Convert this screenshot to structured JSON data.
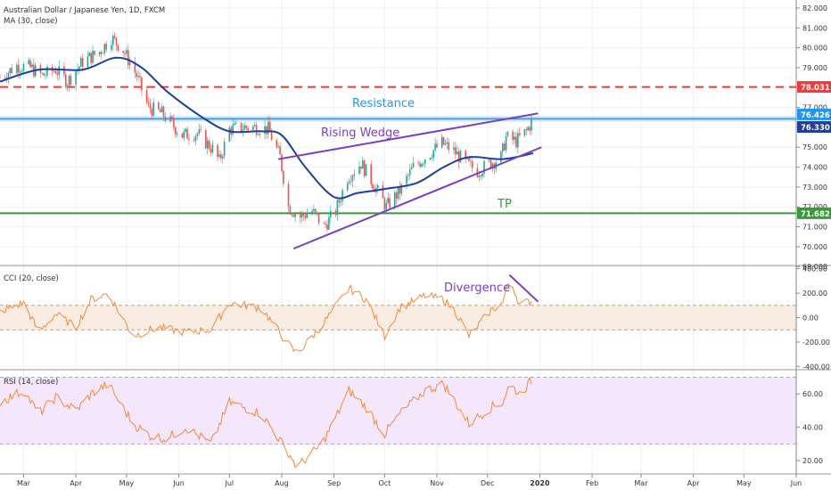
{
  "header": {
    "title": "Australian Dollar / Japanese Yen, 1D, FXCM",
    "ma_label": "MA (30, close)"
  },
  "price_axis": {
    "ticks": [
      "82.000",
      "81.000",
      "80.000",
      "79.000",
      "78.000",
      "77.000",
      "76.000",
      "75.000",
      "74.000",
      "73.000",
      "72.000",
      "71.000",
      "70.000",
      "69.000"
    ],
    "badges": [
      {
        "label": "78.031",
        "value": 78.031,
        "color": "#ef3b3b"
      },
      {
        "label": "76.426",
        "value": 76.426,
        "color": "#2196f3"
      },
      {
        "label": "76.330",
        "value": 76.33,
        "color": "#1f3f99"
      },
      {
        "label": "71.682",
        "value": 71.682,
        "color": "#3a9a3a"
      }
    ]
  },
  "annotations": {
    "resistance": "Resistance",
    "rising_wedge": "Rising Wedge",
    "tp": "TP",
    "divergence": "Divergence"
  },
  "cci_panel": {
    "label": "CCI (20, close)",
    "ticks": [
      "400.00",
      "200.00",
      "0.00",
      "-200.00",
      "-400.00"
    ]
  },
  "rsi_panel": {
    "label": "RSI (14, close)",
    "ticks": [
      "60.00",
      "40.00",
      "20.00"
    ]
  },
  "time_axis": {
    "ticks": [
      "Mar",
      "Apr",
      "May",
      "Jun",
      "Jul",
      "Aug",
      "Sep",
      "Oct",
      "Nov",
      "Dec",
      "2020",
      "Feb",
      "Mar",
      "Apr",
      "May",
      "Jun"
    ]
  },
  "colors": {
    "up": "#26a69a",
    "down": "#ef5350",
    "ma": "#1f3f99",
    "indicator": "#f28a3c",
    "wedge": "#7b3fbf",
    "resistance": "#2196f3",
    "tp": "#3a9a3a",
    "level": "#ef3b3b"
  },
  "chart_data": [
    {
      "type": "candlestick",
      "title": "Australian Dollar / Japanese Yen, 1D, FXCM",
      "ylim": [
        69,
        82
      ],
      "x_range": [
        "2019-02-15",
        "2020-06-01"
      ],
      "price_path": [
        [
          "2019-02-15",
          78.5
        ],
        [
          "2019-02-25",
          79.1
        ],
        [
          "2019-03-05",
          79.0
        ],
        [
          "2019-03-12",
          78.6
        ],
        [
          "2019-03-20",
          78.9
        ],
        [
          "2019-03-27",
          78.3
        ],
        [
          "2019-04-05",
          79.3
        ],
        [
          "2019-04-15",
          79.8
        ],
        [
          "2019-04-22",
          80.5
        ],
        [
          "2019-04-29",
          79.9
        ],
        [
          "2019-05-07",
          78.6
        ],
        [
          "2019-05-14",
          77.0
        ],
        [
          "2019-05-22",
          76.7
        ],
        [
          "2019-06-03",
          75.6
        ],
        [
          "2019-06-12",
          75.7
        ],
        [
          "2019-06-21",
          74.9
        ],
        [
          "2019-06-25",
          74.3
        ],
        [
          "2019-07-01",
          75.9
        ],
        [
          "2019-07-10",
          76.0
        ],
        [
          "2019-07-18",
          76.0
        ],
        [
          "2019-07-24",
          75.9
        ],
        [
          "2019-07-31",
          74.5
        ],
        [
          "2019-08-05",
          72.0
        ],
        [
          "2019-08-12",
          71.5
        ],
        [
          "2019-08-19",
          71.8
        ],
        [
          "2019-08-26",
          71.0
        ],
        [
          "2019-09-02",
          71.8
        ],
        [
          "2019-09-09",
          73.5
        ],
        [
          "2019-09-17",
          74.2
        ],
        [
          "2019-09-24",
          73.2
        ],
        [
          "2019-10-02",
          72.0
        ],
        [
          "2019-10-10",
          72.8
        ],
        [
          "2019-10-18",
          74.0
        ],
        [
          "2019-10-25",
          74.5
        ],
        [
          "2019-11-04",
          75.2
        ],
        [
          "2019-11-11",
          74.8
        ],
        [
          "2019-11-18",
          74.2
        ],
        [
          "2019-11-25",
          73.8
        ],
        [
          "2019-12-03",
          74.2
        ],
        [
          "2019-12-09",
          74.5
        ],
        [
          "2019-12-12",
          75.5
        ],
        [
          "2019-12-18",
          75.3
        ],
        [
          "2019-12-24",
          75.8
        ],
        [
          "2019-12-28",
          76.4
        ]
      ],
      "ma_30": [
        [
          "2019-02-15",
          78.3
        ],
        [
          "2019-03-10",
          78.9
        ],
        [
          "2019-04-05",
          78.9
        ],
        [
          "2019-04-25",
          79.5
        ],
        [
          "2019-05-10",
          79.0
        ],
        [
          "2019-05-25",
          77.8
        ],
        [
          "2019-06-15",
          76.5
        ],
        [
          "2019-07-01",
          75.8
        ],
        [
          "2019-07-20",
          75.8
        ],
        [
          "2019-08-01",
          75.6
        ],
        [
          "2019-08-15",
          74.0
        ],
        [
          "2019-09-01",
          72.5
        ],
        [
          "2019-09-15",
          72.7
        ],
        [
          "2019-10-01",
          72.9
        ],
        [
          "2019-10-20",
          73.2
        ],
        [
          "2019-11-05",
          74.0
        ],
        [
          "2019-11-20",
          74.5
        ],
        [
          "2019-12-10",
          74.4
        ],
        [
          "2019-12-28",
          74.7
        ]
      ],
      "levels": [
        {
          "name": "level-78",
          "value": 78.031
        },
        {
          "name": "Resistance",
          "value": 76.426
        },
        {
          "name": "TP",
          "value": 71.682
        }
      ],
      "wedge_lines": [
        {
          "from": [
            "2019-07-30",
            74.4
          ],
          "to": [
            "2019-12-31",
            76.7
          ]
        },
        {
          "from": [
            "2019-08-08",
            69.9
          ],
          "to": [
            "2020-01-02",
            75.0
          ]
        }
      ]
    },
    {
      "type": "line",
      "title": "CCI (20, close)",
      "ylim": [
        -420,
        420
      ],
      "band": [
        -100,
        100
      ],
      "path": [
        [
          "2019-02-15",
          50
        ],
        [
          "2019-03-01",
          120
        ],
        [
          "2019-03-10",
          -120
        ],
        [
          "2019-03-20",
          30
        ],
        [
          "2019-04-01",
          -80
        ],
        [
          "2019-04-10",
          150
        ],
        [
          "2019-04-20",
          200
        ],
        [
          "2019-05-05",
          -150
        ],
        [
          "2019-05-20",
          -80
        ],
        [
          "2019-06-05",
          -120
        ],
        [
          "2019-06-20",
          -100
        ],
        [
          "2019-07-01",
          120
        ],
        [
          "2019-07-20",
          80
        ],
        [
          "2019-08-05",
          -220
        ],
        [
          "2019-08-10",
          -300
        ],
        [
          "2019-08-25",
          -60
        ],
        [
          "2019-09-10",
          240
        ],
        [
          "2019-09-20",
          150
        ],
        [
          "2019-10-01",
          -150
        ],
        [
          "2019-10-10",
          80
        ],
        [
          "2019-10-25",
          180
        ],
        [
          "2019-11-05",
          150
        ],
        [
          "2019-11-12",
          50
        ],
        [
          "2019-11-20",
          -150
        ],
        [
          "2019-12-03",
          60
        ],
        [
          "2019-12-10",
          120
        ],
        [
          "2019-12-14",
          330
        ],
        [
          "2019-12-20",
          110
        ],
        [
          "2019-12-28",
          140
        ]
      ],
      "divergence_line": {
        "from": [
          "2019-12-14",
          350
        ],
        "to": [
          "2019-12-31",
          130
        ]
      }
    },
    {
      "type": "line",
      "title": "RSI (14, close)",
      "ylim": [
        12,
        74
      ],
      "band": [
        30,
        70
      ],
      "path": [
        [
          "2019-02-15",
          55
        ],
        [
          "2019-03-01",
          62
        ],
        [
          "2019-03-10",
          48
        ],
        [
          "2019-03-20",
          58
        ],
        [
          "2019-04-01",
          50
        ],
        [
          "2019-04-10",
          60
        ],
        [
          "2019-04-20",
          66
        ],
        [
          "2019-05-05",
          42
        ],
        [
          "2019-05-15",
          35
        ],
        [
          "2019-05-25",
          33
        ],
        [
          "2019-06-05",
          40
        ],
        [
          "2019-06-20",
          30
        ],
        [
          "2019-07-01",
          55
        ],
        [
          "2019-07-20",
          48
        ],
        [
          "2019-08-05",
          25
        ],
        [
          "2019-08-10",
          16
        ],
        [
          "2019-08-25",
          30
        ],
        [
          "2019-09-10",
          62
        ],
        [
          "2019-09-20",
          52
        ],
        [
          "2019-10-01",
          36
        ],
        [
          "2019-10-10",
          48
        ],
        [
          "2019-10-25",
          62
        ],
        [
          "2019-11-05",
          66
        ],
        [
          "2019-11-12",
          55
        ],
        [
          "2019-11-20",
          42
        ],
        [
          "2019-12-03",
          52
        ],
        [
          "2019-12-10",
          55
        ],
        [
          "2019-12-14",
          66
        ],
        [
          "2019-12-20",
          60
        ],
        [
          "2019-12-28",
          69
        ]
      ]
    }
  ]
}
